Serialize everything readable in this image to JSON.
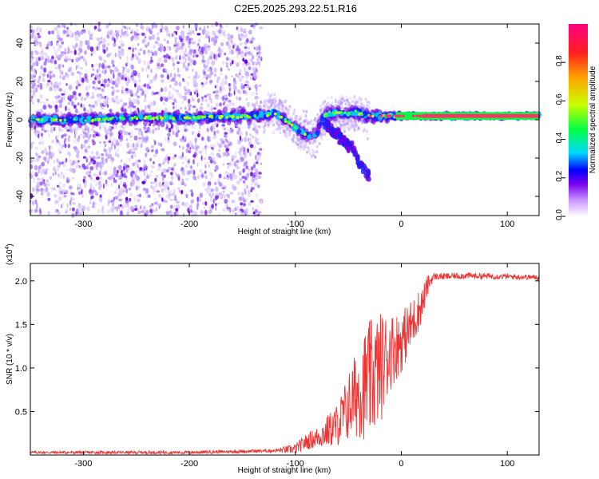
{
  "title": "C2E5.2025.293.22.51.R16",
  "chart_data": [
    {
      "type": "heatmap",
      "xlabel": "Height of straight line (km)",
      "ylabel": "Frequency (Hz)",
      "xlim": [
        -350,
        130
      ],
      "ylim": [
        -50,
        50
      ],
      "x_ticks": [
        -300,
        -200,
        -100,
        0,
        100
      ],
      "x_tick_labels": [
        "-300",
        "-200",
        "-100",
        "0",
        "100"
      ],
      "y_ticks": [
        -40,
        -20,
        0,
        20,
        40
      ],
      "y_tick_labels": [
        "-40",
        "-20",
        "0",
        "20",
        "40"
      ],
      "colorbar": {
        "label": "Normalized spectral amplitude",
        "range": [
          0,
          1
        ],
        "ticks": [
          0,
          0.2,
          0.4,
          0.6,
          0.8
        ],
        "tick_labels": [
          "0.0",
          "0.2",
          "0.4",
          "0.6",
          "0.8"
        ],
        "colors": [
          "#ffffff",
          "#cc99ff",
          "#7700ee",
          "#0000ff",
          "#00d8ff",
          "#00ff44",
          "#c8ff00",
          "#ffa500",
          "#ff2020",
          "#ff0080"
        ]
      },
      "ridge": [
        [
          -350,
          0
        ],
        [
          -300,
          0
        ],
        [
          -250,
          1
        ],
        [
          -200,
          1
        ],
        [
          -150,
          2
        ],
        [
          -130,
          2
        ],
        [
          -120,
          4
        ],
        [
          -110,
          0
        ],
        [
          -100,
          -4
        ],
        [
          -90,
          -8
        ],
        [
          -80,
          -8
        ],
        [
          -75,
          0
        ],
        [
          -70,
          3
        ],
        [
          -60,
          4
        ],
        [
          -50,
          3
        ],
        [
          -45,
          4
        ],
        [
          -30,
          2
        ],
        [
          -20,
          2
        ],
        [
          0,
          2
        ],
        [
          50,
          2
        ],
        [
          100,
          2
        ],
        [
          130,
          2
        ]
      ],
      "branch": [
        [
          -75,
          0
        ],
        [
          -65,
          -6
        ],
        [
          -55,
          -10
        ],
        [
          -45,
          -16
        ],
        [
          -40,
          -22
        ],
        [
          -35,
          -26
        ],
        [
          -30,
          -29
        ]
      ]
    },
    {
      "type": "line",
      "xlabel": "Height of straight line (km)",
      "ylabel": "SNR (10 * v/v)",
      "y_scale_label": "(x10",
      "y_scale_exp": "4",
      "y_scale_close": ")",
      "xlim": [
        -350,
        130
      ],
      "ylim": [
        0,
        2.2
      ],
      "x_ticks": [
        -300,
        -200,
        -100,
        0,
        100
      ],
      "x_tick_labels": [
        "-300",
        "-200",
        "-100",
        "0",
        "100"
      ],
      "y_ticks": [
        0.5,
        1.0,
        1.5,
        2.0
      ],
      "y_tick_labels": [
        "0.5",
        "1.0",
        "1.5",
        "2.0"
      ],
      "color": "#ee3333",
      "envelope": [
        [
          -350,
          0.03
        ],
        [
          -200,
          0.03
        ],
        [
          -160,
          0.04
        ],
        [
          -120,
          0.05
        ],
        [
          -100,
          0.07
        ],
        [
          -90,
          0.15
        ],
        [
          -80,
          0.2
        ],
        [
          -70,
          0.27
        ],
        [
          -60,
          0.35
        ],
        [
          -50,
          0.55
        ],
        [
          -40,
          0.75
        ],
        [
          -30,
          0.85
        ],
        [
          -20,
          1.0
        ],
        [
          -10,
          1.2
        ],
        [
          0,
          1.3
        ],
        [
          10,
          1.5
        ],
        [
          20,
          1.75
        ],
        [
          25,
          1.95
        ],
        [
          30,
          2.05
        ],
        [
          40,
          2.05
        ],
        [
          60,
          2.06
        ],
        [
          100,
          2.05
        ],
        [
          130,
          2.04
        ]
      ],
      "noise": [
        [
          -350,
          0.015
        ],
        [
          -120,
          0.02
        ],
        [
          -100,
          0.06
        ],
        [
          -80,
          0.12
        ],
        [
          -60,
          0.25
        ],
        [
          -50,
          0.4
        ],
        [
          -40,
          0.55
        ],
        [
          -30,
          0.7
        ],
        [
          -20,
          0.65
        ],
        [
          -10,
          0.45
        ],
        [
          0,
          0.35
        ],
        [
          10,
          0.3
        ],
        [
          20,
          0.2
        ],
        [
          30,
          0.04
        ],
        [
          130,
          0.03
        ]
      ]
    }
  ],
  "colors": {
    "frame": "#000000",
    "line": "#ee3333"
  }
}
